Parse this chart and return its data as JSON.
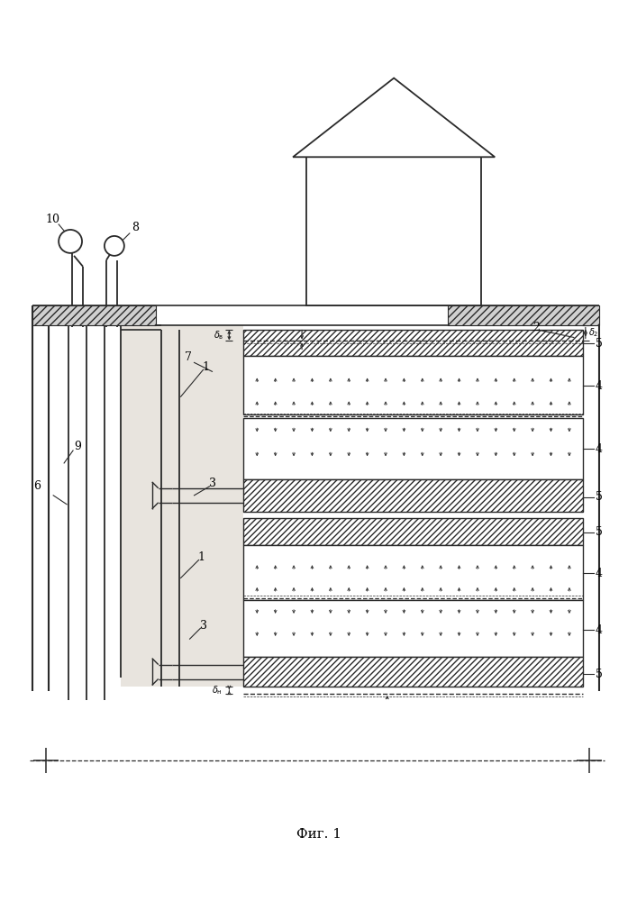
{
  "fig_width": 7.07,
  "fig_height": 10.0,
  "bg_color": "#ffffff",
  "line_color": "#2a2a2a",
  "caption": "Фиг. 1",
  "label_fontsize": 9,
  "caption_fontsize": 11
}
